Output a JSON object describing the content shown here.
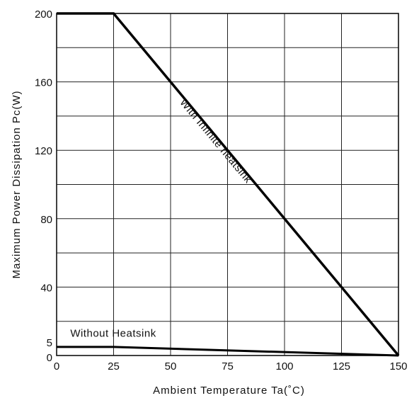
{
  "chart_data": {
    "type": "line",
    "title": "",
    "xlabel": "Ambient Temperature Ta(˚C)",
    "ylabel": "Maximum Power Dissipation Pc(W)",
    "xlim": [
      0,
      150
    ],
    "ylim": [
      0,
      200
    ],
    "x_ticks": [
      0,
      25,
      50,
      75,
      100,
      125,
      150
    ],
    "y_ticks": [
      0,
      5,
      40,
      80,
      120,
      160,
      200
    ],
    "x_tick_labels": [
      "0",
      "25",
      "50",
      "75",
      "100",
      "125",
      "150"
    ],
    "y_tick_labels": [
      "0",
      "5",
      "40",
      "80",
      "120",
      "160",
      "200"
    ],
    "grid": true,
    "series": [
      {
        "name": "With Infinite heatsink",
        "x": [
          0,
          25,
          150
        ],
        "y": [
          200,
          200,
          0
        ]
      },
      {
        "name": "Without Heatsink",
        "x": [
          0,
          25,
          150
        ],
        "y": [
          5,
          5,
          0
        ]
      }
    ],
    "annotations": [
      {
        "text": "With Infinite heatsink",
        "series": 0
      },
      {
        "text": "Without Heatsink",
        "series": 1
      }
    ],
    "line_color": "#000000"
  }
}
